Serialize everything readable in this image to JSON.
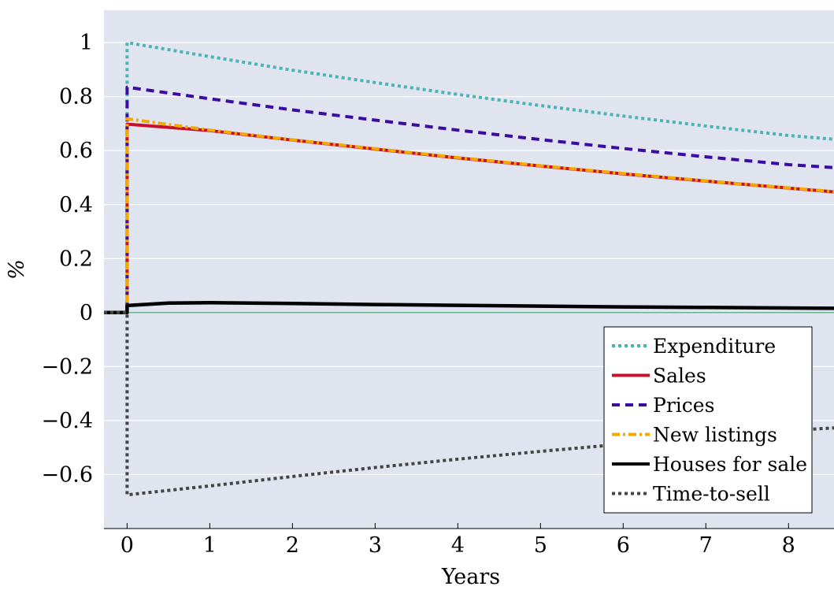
{
  "chart_data": {
    "type": "line",
    "title": "",
    "xlabel": "Years",
    "ylabel": "%",
    "xlim": [
      -0.28,
      8.55
    ],
    "ylim": [
      -0.8,
      1.12
    ],
    "x_ticks": [
      0,
      1,
      2,
      3,
      4,
      5,
      6,
      7,
      8
    ],
    "y_ticks": [
      1,
      0.8,
      0.6,
      0.4,
      0.2,
      0,
      -0.2,
      -0.4,
      -0.6
    ],
    "y_tick_labels": [
      "1",
      "0.8",
      "0.6",
      "0.4",
      "0.2",
      "0",
      "−0.2",
      "−0.4",
      "−0.6"
    ],
    "grid": true,
    "background": "#e0e4ef",
    "legend_position": "bottom-right",
    "series": [
      {
        "name": "Expenditure",
        "color": "#4bb5b5",
        "style": "dotted",
        "x": [
          -0.28,
          0,
          0,
          1,
          2,
          3,
          4,
          5,
          6,
          7,
          8,
          8.55
        ],
        "y": [
          0,
          0,
          1.0,
          0.948,
          0.898,
          0.852,
          0.808,
          0.767,
          0.728,
          0.691,
          0.656,
          0.642
        ]
      },
      {
        "name": "Sales",
        "color": "#c8102e",
        "style": "solid",
        "x": [
          -0.28,
          0,
          0,
          1,
          2,
          3,
          4,
          5,
          6,
          7,
          8,
          8.55
        ],
        "y": [
          0,
          0,
          0.698,
          0.674,
          0.639,
          0.606,
          0.573,
          0.543,
          0.514,
          0.487,
          0.461,
          0.447
        ]
      },
      {
        "name": "Prices",
        "color": "#3a0ca3",
        "style": "dashed",
        "x": [
          -0.28,
          0,
          0,
          1,
          2,
          3,
          4,
          5,
          6,
          7,
          8,
          8.55
        ],
        "y": [
          0,
          0,
          0.835,
          0.792,
          0.751,
          0.713,
          0.676,
          0.641,
          0.608,
          0.577,
          0.548,
          0.537
        ]
      },
      {
        "name": "New listings",
        "color": "#f2a900",
        "style": "dashdot",
        "x": [
          -0.28,
          0,
          0,
          1,
          2,
          3,
          4,
          5,
          6,
          7,
          8,
          8.55
        ],
        "y": [
          0,
          0,
          0.718,
          0.676,
          0.64,
          0.607,
          0.574,
          0.544,
          0.515,
          0.488,
          0.462,
          0.448
        ]
      },
      {
        "name": "Houses for sale",
        "color": "#000000",
        "style": "solid",
        "x": [
          -0.28,
          0,
          0,
          0.5,
          1,
          2,
          3,
          4,
          5,
          6,
          7,
          8,
          8.55
        ],
        "y": [
          0,
          0,
          0.026,
          0.035,
          0.037,
          0.034,
          0.03,
          0.027,
          0.024,
          0.021,
          0.019,
          0.017,
          0.016
        ]
      },
      {
        "name": "Time-to-sell",
        "color": "#444444",
        "style": "dotted",
        "x": [
          -0.28,
          0,
          0,
          1,
          2,
          3,
          4,
          5,
          6,
          7,
          8,
          8.55
        ],
        "y": [
          0,
          0,
          -0.675,
          -0.642,
          -0.607,
          -0.574,
          -0.543,
          -0.514,
          -0.487,
          -0.461,
          -0.437,
          -0.427
        ]
      }
    ]
  }
}
